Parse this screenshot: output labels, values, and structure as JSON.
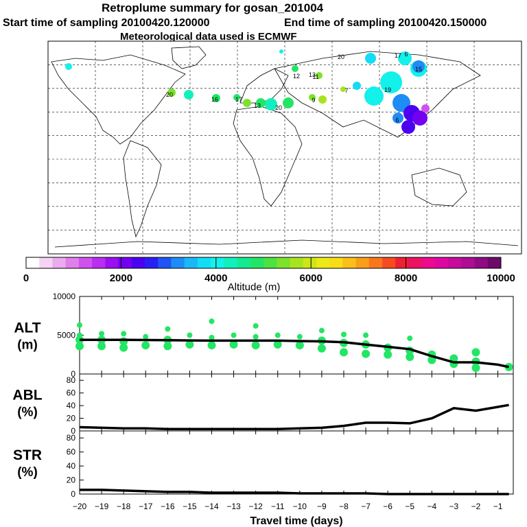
{
  "header": {
    "title": "Retroplume summary for gosan_201004",
    "start_sampling": "Start time of sampling 20100420.120000",
    "end_sampling": "End time of sampling 20100420.150000",
    "met_data": "Meteorological data used is ECMWF"
  },
  "colorbar": {
    "label": "Altitude (m)",
    "ticks": [
      "0",
      "2000",
      "4000",
      "6000",
      "8000",
      "10000"
    ],
    "colors": [
      "#ffffff",
      "#f6d3f5",
      "#ecaaef",
      "#e07fe9",
      "#d052ec",
      "#b92ef0",
      "#9a10ef",
      "#7300ef",
      "#4b00f0",
      "#2a1ff2",
      "#1f55f4",
      "#1e8cf5",
      "#1ab8f6",
      "#14dcf6",
      "#12f1ea",
      "#12efbe",
      "#14ea90",
      "#23e565",
      "#4be242",
      "#7be22d",
      "#a7e41f",
      "#cde619",
      "#ecea17",
      "#f7dc17",
      "#fac018",
      "#fa9d19",
      "#fa761c",
      "#f64b20",
      "#ee2034",
      "#ec1162",
      "#ec0a8f",
      "#dd08a2",
      "#c70a9c",
      "#ad0c93",
      "#8e0b82",
      "#6d0a68"
    ]
  },
  "map_labels": [
    {
      "t": "19",
      "c": "#00e0d0"
    },
    {
      "t": "17",
      "c": "#00e0d0"
    },
    {
      "t": "6",
      "c": "#00e0d0"
    },
    {
      "t": "15",
      "c": "#00e0d0"
    },
    {
      "t": "20",
      "c": "#00e0d0"
    },
    {
      "t": "13",
      "c": "#00e0d0"
    },
    {
      "t": "16",
      "c": "#00e0d0"
    },
    {
      "t": "17",
      "c": "#30e080"
    },
    {
      "t": "20",
      "c": "#a0e020"
    },
    {
      "t": "13",
      "c": "#30e080"
    },
    {
      "t": "9",
      "c": "#a0e020"
    },
    {
      "t": "7",
      "c": "#a0e020"
    },
    {
      "t": "6",
      "c": "#2080f0"
    },
    {
      "t": "20",
      "c": "#60e040"
    },
    {
      "t": "12",
      "c": "#a0e020"
    },
    {
      "t": "11",
      "c": "#30e080"
    }
  ],
  "chart_data": [
    {
      "type": "line",
      "name": "ALT",
      "ylabel": "ALT\n(m)",
      "ylim": [
        0,
        10000
      ],
      "yticks": [
        0,
        5000,
        10000
      ],
      "x": [
        -20,
        -19,
        -18,
        -17,
        -16,
        -15,
        -14,
        -13,
        -12,
        -11,
        -10,
        -9,
        -8,
        -7,
        -6,
        -5,
        -4,
        -3,
        -2,
        -1,
        -0.5
      ],
      "values": [
        4400,
        4400,
        4400,
        4380,
        4350,
        4330,
        4300,
        4300,
        4300,
        4300,
        4250,
        4200,
        4100,
        3800,
        3500,
        3200,
        2300,
        1500,
        1500,
        1200,
        900
      ],
      "points": [
        {
          "x": -20,
          "y": 3600
        },
        {
          "x": -20,
          "y": 4400
        },
        {
          "x": -20,
          "y": 5000
        },
        {
          "x": -20,
          "y": 6300
        },
        {
          "x": -19,
          "y": 3600
        },
        {
          "x": -19,
          "y": 4400
        },
        {
          "x": -19,
          "y": 5200
        },
        {
          "x": -18,
          "y": 3400
        },
        {
          "x": -18,
          "y": 4200
        },
        {
          "x": -18,
          "y": 5200
        },
        {
          "x": -17,
          "y": 3700
        },
        {
          "x": -17,
          "y": 4800
        },
        {
          "x": -16,
          "y": 3600
        },
        {
          "x": -16,
          "y": 4400
        },
        {
          "x": -16,
          "y": 5800
        },
        {
          "x": -15,
          "y": 3800
        },
        {
          "x": -15,
          "y": 5000
        },
        {
          "x": -14,
          "y": 3700
        },
        {
          "x": -14,
          "y": 4700
        },
        {
          "x": -14,
          "y": 6800
        },
        {
          "x": -13,
          "y": 3800
        },
        {
          "x": -13,
          "y": 5000
        },
        {
          "x": -12,
          "y": 3700
        },
        {
          "x": -12,
          "y": 4800
        },
        {
          "x": -12,
          "y": 6200
        },
        {
          "x": -11,
          "y": 3800
        },
        {
          "x": -11,
          "y": 5000
        },
        {
          "x": -10,
          "y": 3700
        },
        {
          "x": -10,
          "y": 4800
        },
        {
          "x": -9,
          "y": 3300
        },
        {
          "x": -9,
          "y": 4300
        },
        {
          "x": -9,
          "y": 5600
        },
        {
          "x": -8,
          "y": 2800
        },
        {
          "x": -8,
          "y": 4000
        },
        {
          "x": -8,
          "y": 5100
        },
        {
          "x": -7,
          "y": 2600
        },
        {
          "x": -7,
          "y": 3800
        },
        {
          "x": -7,
          "y": 5000
        },
        {
          "x": -6,
          "y": 2500
        },
        {
          "x": -6,
          "y": 3400
        },
        {
          "x": -5,
          "y": 2200
        },
        {
          "x": -5,
          "y": 3000
        },
        {
          "x": -5,
          "y": 4600
        },
        {
          "x": -4,
          "y": 1800
        },
        {
          "x": -4,
          "y": 2500
        },
        {
          "x": -3,
          "y": 1300
        },
        {
          "x": -3,
          "y": 2000
        },
        {
          "x": -2,
          "y": 800
        },
        {
          "x": -2,
          "y": 1600
        },
        {
          "x": -2,
          "y": 2800
        },
        {
          "x": -0.5,
          "y": 900
        }
      ]
    },
    {
      "type": "line",
      "name": "ABL",
      "ylabel": "ABL\n(%)",
      "ylim": [
        0,
        90
      ],
      "yticks": [
        0,
        20,
        40,
        60,
        80
      ],
      "x": [
        -20,
        -19,
        -18,
        -17,
        -16,
        -15,
        -14,
        -13,
        -12,
        -11,
        -10,
        -9,
        -8,
        -7,
        -6,
        -5,
        -4,
        -3,
        -2,
        -1,
        -0.5
      ],
      "values": [
        6,
        5,
        4,
        4,
        3,
        3,
        3,
        3,
        3,
        3,
        4,
        5,
        8,
        13,
        13,
        12,
        20,
        36,
        32,
        38,
        41
      ]
    },
    {
      "type": "line",
      "name": "STR",
      "ylabel": "STR\n(%)",
      "ylim": [
        0,
        90
      ],
      "yticks": [
        0,
        20,
        40,
        60,
        80
      ],
      "x": [
        -20,
        -19,
        -18,
        -17,
        -16,
        -15,
        -14,
        -13,
        -12,
        -11,
        -10,
        -9,
        -8,
        -7,
        -6,
        -5,
        -4,
        -3,
        -2,
        -1,
        -0.5
      ],
      "values": [
        6,
        6,
        5,
        4,
        3,
        3,
        2,
        2,
        2,
        2,
        1,
        1,
        1,
        1,
        0,
        0,
        0,
        0,
        0,
        0,
        0
      ]
    }
  ],
  "xaxis": {
    "label": "Travel time (days)",
    "ticks": [
      -20,
      -19,
      -18,
      -17,
      -16,
      -15,
      -14,
      -13,
      -12,
      -11,
      -10,
      -9,
      -8,
      -7,
      -6,
      -5,
      -4,
      -3,
      -2,
      -1
    ]
  }
}
